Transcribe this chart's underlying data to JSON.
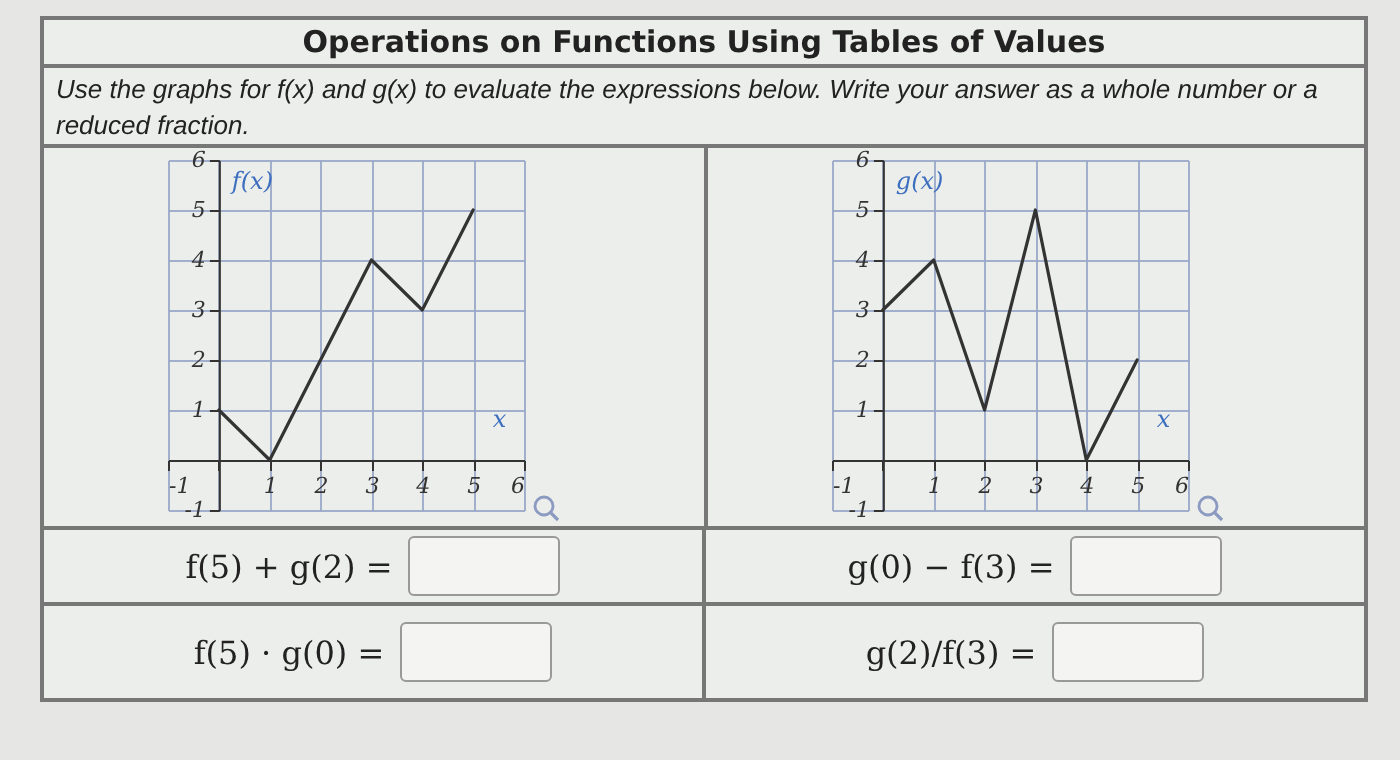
{
  "chart_data": [
    {
      "type": "line",
      "title": "Operations on Functions Using Tables of Values",
      "subtitle": "Use the graphs for f(x) and g(x) to evaluate the expressions below. Write your answer as a whole number or a reduced fraction.",
      "xlabel": "x",
      "ylabel": "f(x)",
      "x": [
        0,
        1,
        3,
        4,
        5
      ],
      "series": [
        {
          "color": "#333333",
          "values": [
            1,
            0,
            4,
            3,
            5
          ]
        }
      ],
      "xlim": [
        -1,
        6
      ],
      "ylim": [
        -1,
        6
      ],
      "xticks": [
        -1,
        {
          "value": 0,
          "label": null
        },
        1,
        2,
        3,
        4,
        5,
        6
      ],
      "yticks": [
        -1,
        {
          "value": 0,
          "label": null
        },
        1,
        2,
        3,
        4,
        5,
        6
      ],
      "grid": true,
      "line_style": "solid",
      "annotations": [
        "f(5) + g(2) =",
        "f(5) · g(0) ="
      ]
    },
    {
      "type": "line",
      "xlabel": "x",
      "ylabel": "g(x)",
      "x": [
        0,
        1,
        2,
        3,
        4,
        5
      ],
      "series": [
        {
          "color": "#333333",
          "values": [
            3,
            4,
            1,
            5,
            0,
            2
          ]
        }
      ],
      "xlim": [
        -1,
        6
      ],
      "ylim": [
        -1,
        6
      ],
      "xticks": [
        -1,
        {
          "value": 0,
          "label": null
        },
        1,
        2,
        3,
        4,
        5,
        6
      ],
      "yticks": [
        -1,
        {
          "value": 0,
          "label": null
        },
        1,
        2,
        3,
        4,
        5,
        6
      ],
      "grid": true,
      "line_style": "solid",
      "annotations": [
        "g(0) − f(3) =",
        "g(2)/f(3) ="
      ]
    }
  ]
}
